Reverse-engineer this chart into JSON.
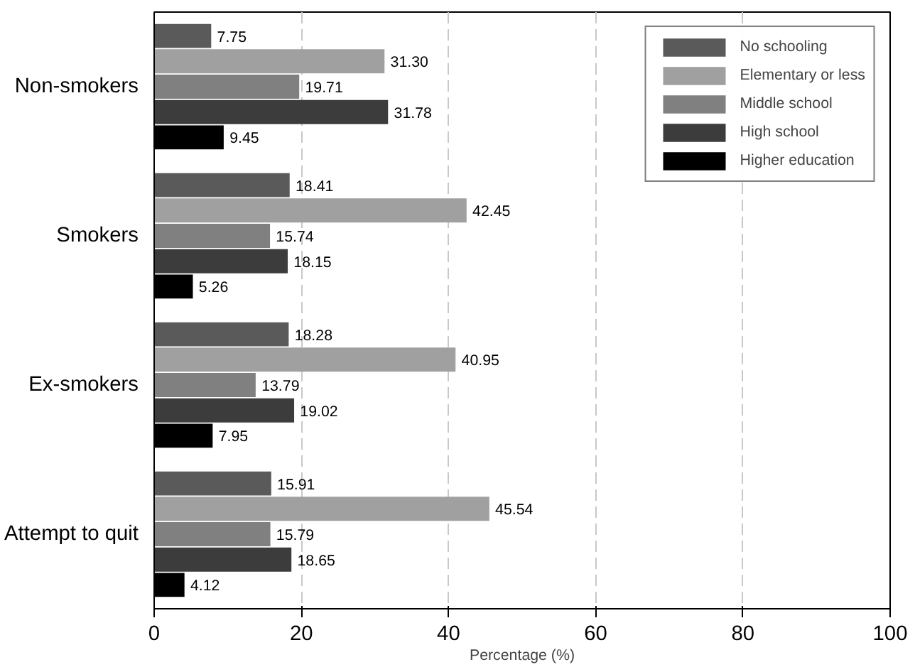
{
  "chart_data": {
    "type": "bar",
    "orientation": "horizontal",
    "xlabel": "Percentage (%)",
    "categories": [
      "Non-smokers",
      "Smokers",
      "Ex-smokers",
      "Attempt to quit"
    ],
    "series": [
      {
        "name": "No schooling",
        "color": "#5a5a5a",
        "values": [
          7.75,
          18.41,
          18.28,
          15.91
        ],
        "value_labels": [
          "7.75",
          "18.41",
          "18.28",
          "15.91"
        ]
      },
      {
        "name": "Elementary or less",
        "color": "#a0a0a0",
        "values": [
          31.3,
          42.45,
          40.95,
          45.54
        ],
        "value_labels": [
          "31.30",
          "42.45",
          "40.95",
          "45.54"
        ]
      },
      {
        "name": "Middle school",
        "color": "#808080",
        "values": [
          19.71,
          15.74,
          13.79,
          15.79
        ],
        "value_labels": [
          "19.71",
          "15.74",
          "13.79",
          "15.79"
        ]
      },
      {
        "name": "High school",
        "color": "#3c3c3c",
        "values": [
          31.78,
          18.15,
          19.02,
          18.65
        ],
        "value_labels": [
          "31.78",
          "18.15",
          "19.02",
          "18.65"
        ]
      },
      {
        "name": "Higher education",
        "color": "#000000",
        "values": [
          9.45,
          5.26,
          7.95,
          4.12
        ],
        "value_labels": [
          "9.45",
          "5.26",
          "7.95",
          "4.12"
        ]
      }
    ],
    "xlim": [
      0,
      100
    ],
    "xticks": [
      0,
      20,
      40,
      60,
      80,
      100
    ],
    "grid": "x",
    "legend": "top right"
  }
}
